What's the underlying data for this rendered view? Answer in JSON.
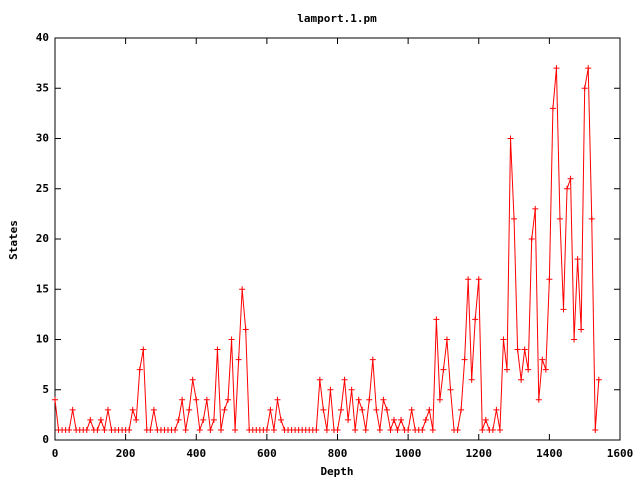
{
  "chart_data": {
    "type": "line",
    "title": "lamport.1.pm",
    "x_label": "Depth",
    "y_label": "States",
    "x": [
      0,
      10,
      20,
      30,
      40,
      50,
      60,
      70,
      80,
      90,
      100,
      110,
      120,
      130,
      140,
      150,
      160,
      170,
      180,
      190,
      200,
      210,
      220,
      230,
      240,
      250,
      260,
      270,
      280,
      290,
      300,
      310,
      320,
      330,
      340,
      350,
      360,
      370,
      380,
      390,
      400,
      410,
      420,
      430,
      440,
      450,
      460,
      470,
      480,
      490,
      500,
      510,
      520,
      530,
      540,
      550,
      560,
      570,
      580,
      590,
      600,
      610,
      620,
      630,
      640,
      650,
      660,
      670,
      680,
      690,
      700,
      710,
      720,
      730,
      740,
      750,
      760,
      770,
      780,
      790,
      800,
      810,
      820,
      830,
      840,
      850,
      860,
      870,
      880,
      890,
      900,
      910,
      920,
      930,
      940,
      950,
      960,
      970,
      980,
      990,
      1000,
      1010,
      1020,
      1030,
      1040,
      1050,
      1060,
      1070,
      1080,
      1090,
      1100,
      1110,
      1120,
      1130,
      1140,
      1150,
      1160,
      1170,
      1180,
      1190,
      1200,
      1210,
      1220,
      1230,
      1240,
      1250,
      1260,
      1270,
      1280,
      1290,
      1300,
      1310,
      1320,
      1330,
      1340,
      1350,
      1360,
      1370,
      1380,
      1390,
      1400,
      1410,
      1420,
      1430,
      1440,
      1450,
      1460,
      1470,
      1480,
      1490,
      1500,
      1510,
      1520,
      1530,
      1540
    ],
    "series": [
      {
        "color": "#ff0000",
        "values": [
          4,
          1,
          1,
          1,
          1,
          3,
          1,
          1,
          1,
          1,
          2,
          1,
          1,
          2,
          1,
          3,
          1,
          1,
          1,
          1,
          1,
          1,
          3,
          2,
          7,
          9,
          1,
          1,
          3,
          1,
          1,
          1,
          1,
          1,
          1,
          2,
          4,
          1,
          3,
          6,
          4,
          1,
          2,
          4,
          1,
          2,
          9,
          1,
          3,
          4,
          10,
          1,
          8,
          15,
          11,
          1,
          1,
          1,
          1,
          1,
          1,
          3,
          1,
          4,
          2,
          1,
          1,
          1,
          1,
          1,
          1,
          1,
          1,
          1,
          1,
          6,
          3,
          1,
          5,
          1,
          1,
          3,
          6,
          2,
          5,
          1,
          4,
          3,
          1,
          4,
          8,
          3,
          1,
          4,
          3,
          1,
          2,
          1,
          2,
          1,
          1,
          3,
          1,
          1,
          1,
          2,
          3,
          1,
          12,
          4,
          7,
          10,
          5,
          1,
          1,
          3,
          8,
          16,
          6,
          12,
          16,
          1,
          2,
          1,
          1,
          3,
          1,
          10,
          7,
          30,
          22,
          9,
          6,
          9,
          7,
          20,
          23,
          4,
          8,
          7,
          16,
          33,
          37,
          22,
          13,
          25,
          26,
          10,
          18,
          11,
          35,
          37,
          22,
          1,
          6
        ]
      }
    ],
    "xlim": [
      0,
      1600
    ],
    "xticks": [
      0,
      200,
      400,
      600,
      800,
      1000,
      1200,
      1400,
      1600
    ],
    "ylim": [
      0,
      40
    ],
    "yticks": [
      0,
      5,
      10,
      15,
      20,
      25,
      30,
      35,
      40
    ]
  }
}
